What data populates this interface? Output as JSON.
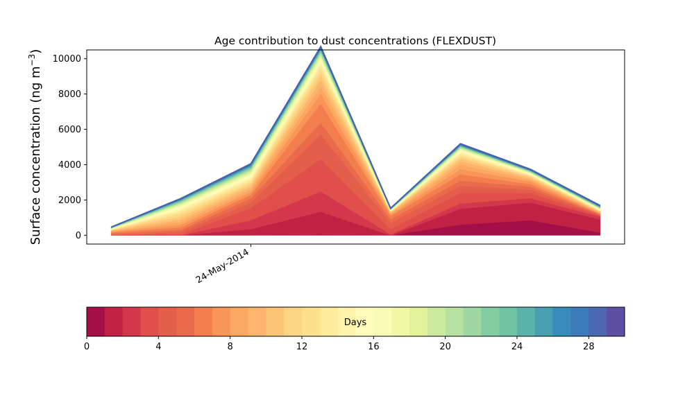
{
  "chart_data": {
    "type": "area",
    "stacked": true,
    "title": "Age contribution to dust concentrations (FLEXDUST)",
    "ylabel": "Surface concentration (ng m",
    "ylabel_sup": "−3",
    "ylabel_close": ")",
    "xlabel": "",
    "x_tick_labels": [
      "24-May-2014"
    ],
    "ylim": [
      -500,
      10500
    ],
    "yticks": [
      0,
      2000,
      4000,
      6000,
      8000,
      10000
    ],
    "grid": false,
    "x_points": [
      0,
      1,
      2,
      3,
      4,
      5,
      6,
      7
    ],
    "x_tick_positions": [
      2
    ],
    "xlim": [
      -0.35,
      7.35
    ],
    "layers": [
      {
        "name": "0-1",
        "color": "#a50f47",
        "values": [
          0,
          0,
          0,
          30,
          0,
          600,
          850,
          150
        ]
      },
      {
        "name": "1-2",
        "color": "#c12244",
        "values": [
          0,
          0,
          350,
          1300,
          0,
          900,
          1000,
          750
        ]
      },
      {
        "name": "2-3",
        "color": "#d4364b",
        "values": [
          0,
          0,
          500,
          1150,
          50,
          300,
          250,
          150
        ]
      },
      {
        "name": "3-4",
        "color": "#e04f4a",
        "values": [
          0,
          50,
          700,
          1850,
          300,
          600,
          300,
          60
        ]
      },
      {
        "name": "4-5",
        "color": "#e55e4c",
        "values": [
          0,
          150,
          300,
          1400,
          350,
          400,
          200,
          40
        ]
      },
      {
        "name": "5-6",
        "color": "#ea6a4c",
        "values": [
          100,
          100,
          250,
          650,
          200,
          300,
          150,
          30
        ]
      },
      {
        "name": "6-7",
        "color": "#f47d4d",
        "values": [
          60,
          150,
          200,
          1100,
          200,
          350,
          150,
          30
        ]
      },
      {
        "name": "7-8",
        "color": "#f99558",
        "values": [
          40,
          150,
          150,
          550,
          80,
          300,
          150,
          30
        ]
      },
      {
        "name": "8-9",
        "color": "#fca762",
        "values": [
          30,
          150,
          150,
          400,
          60,
          250,
          100,
          30
        ]
      },
      {
        "name": "9-10",
        "color": "#fdb56d",
        "values": [
          25,
          150,
          150,
          350,
          40,
          200,
          80,
          30
        ]
      },
      {
        "name": "10-11",
        "color": "#fdc576",
        "values": [
          20,
          150,
          120,
          300,
          30,
          150,
          70,
          30
        ]
      },
      {
        "name": "11-12",
        "color": "#fdd484",
        "values": [
          18,
          150,
          120,
          250,
          25,
          120,
          50,
          25
        ]
      },
      {
        "name": "12-13",
        "color": "#fee08c",
        "values": [
          16,
          120,
          110,
          200,
          20,
          100,
          40,
          25
        ]
      },
      {
        "name": "13-14",
        "color": "#feeb9d",
        "values": [
          15,
          100,
          100,
          150,
          18,
          80,
          35,
          25
        ]
      },
      {
        "name": "14-15",
        "color": "#fff3ac",
        "values": [
          14,
          90,
          90,
          120,
          15,
          70,
          30,
          25
        ]
      },
      {
        "name": "15-16",
        "color": "#fffbba",
        "values": [
          13,
          80,
          80,
          100,
          14,
          60,
          30,
          25
        ]
      },
      {
        "name": "16-17",
        "color": "#f8fcb4",
        "values": [
          12,
          70,
          80,
          100,
          13,
          50,
          25,
          20
        ]
      },
      {
        "name": "17-18",
        "color": "#eff8a6",
        "values": [
          11,
          60,
          75,
          100,
          12,
          50,
          25,
          20
        ]
      },
      {
        "name": "18-19",
        "color": "#e2f39a",
        "values": [
          10,
          55,
          70,
          90,
          11,
          40,
          25,
          20
        ]
      },
      {
        "name": "19-20",
        "color": "#cdeb9e",
        "values": [
          10,
          50,
          65,
          80,
          10,
          40,
          20,
          20
        ]
      },
      {
        "name": "20-21",
        "color": "#b7e2a1",
        "values": [
          9,
          45,
          60,
          70,
          10,
          30,
          20,
          15
        ]
      },
      {
        "name": "21-22",
        "color": "#9fd7a3",
        "values": [
          8,
          40,
          55,
          60,
          10,
          30,
          20,
          15
        ]
      },
      {
        "name": "22-23",
        "color": "#84cda4",
        "values": [
          8,
          35,
          50,
          50,
          9,
          25,
          15,
          15
        ]
      },
      {
        "name": "23-24",
        "color": "#70c3a5",
        "values": [
          7,
          30,
          45,
          45,
          9,
          20,
          15,
          15
        ]
      },
      {
        "name": "24-25",
        "color": "#5bb2aa",
        "values": [
          7,
          25,
          40,
          40,
          8,
          20,
          15,
          15
        ]
      },
      {
        "name": "25-26",
        "color": "#489fb1",
        "values": [
          6,
          20,
          35,
          35,
          8,
          20,
          15,
          15
        ]
      },
      {
        "name": "26-27",
        "color": "#388cbb",
        "values": [
          6,
          20,
          30,
          30,
          8,
          20,
          15,
          15
        ]
      },
      {
        "name": "27-28",
        "color": "#3b7bba",
        "values": [
          5,
          15,
          30,
          30,
          7,
          20,
          15,
          15
        ]
      },
      {
        "name": "28-29",
        "color": "#4c68b0",
        "values": [
          5,
          15,
          25,
          30,
          7,
          20,
          15,
          15
        ]
      },
      {
        "name": "29-30",
        "color": "#5e4fa2",
        "values": [
          5,
          15,
          25,
          30,
          7,
          20,
          15,
          15
        ]
      }
    ],
    "colorbar": {
      "label": "Days",
      "min": 0,
      "max": 30,
      "ticks": [
        0,
        4,
        8,
        12,
        16,
        20,
        24,
        28
      ],
      "tick_labels": [
        "0",
        "4",
        "8",
        "12",
        "16",
        "20",
        "24",
        "28"
      ]
    }
  }
}
